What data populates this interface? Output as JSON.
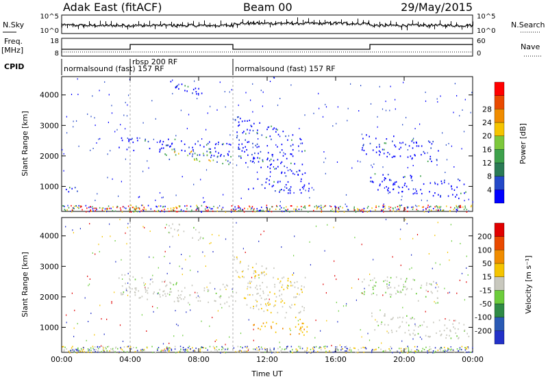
{
  "header": {
    "title": "Adak East (fitACF)",
    "beam": "Beam 00",
    "date": "29/May/2015"
  },
  "noise_panel": {
    "left_label": "N.Sky",
    "right_label": "N.Search",
    "left_ticks": [
      "10^5",
      "10^0"
    ],
    "right_ticks": [
      "10^5",
      "10^0"
    ]
  },
  "freq_panel": {
    "left_label": "Freq.",
    "left_unit": "[MHz]",
    "right_label": "Nave",
    "left_ticks": [
      "18",
      "8"
    ],
    "right_ticks": [
      "60",
      "0"
    ]
  },
  "cpid_panel": {
    "label": "CPID",
    "segments": [
      {
        "start_hour": 0,
        "end_hour": 4,
        "name": "normalsound (fast) 157 RF"
      },
      {
        "start_hour": 4,
        "end_hour": 10,
        "name": "rbsp 200 RF"
      },
      {
        "start_hour": 10,
        "end_hour": 24,
        "name": "normalsound (fast) 157 RF"
      }
    ]
  },
  "chart_data": [
    {
      "type": "heatmap",
      "name": "power",
      "ylabel": "Slant Range [km]",
      "ylim": [
        180,
        4600
      ],
      "yticks": [
        1000,
        2000,
        3000,
        4000
      ],
      "xlim": [
        0,
        24
      ],
      "xticks": [
        0,
        4,
        8,
        12,
        16,
        20,
        24
      ],
      "colorbar": {
        "label": "Power [dB]",
        "ticks": [
          4,
          8,
          12,
          16,
          20,
          24,
          28
        ],
        "colors": [
          "#0000ff",
          "#2449c8",
          "#2a7a55",
          "#3ea14c",
          "#7dc83c",
          "#f5c400",
          "#f08c00",
          "#e94a00",
          "#ff0000"
        ]
      },
      "features": [
        {
          "t0": 3.3,
          "t1": 9.9,
          "r0": 2050,
          "r1": 2600,
          "level": "blue"
        },
        {
          "t0": 6.0,
          "t1": 9.9,
          "r0": 1800,
          "r1": 2200,
          "level": "green-yellow"
        },
        {
          "t0": 10.0,
          "t1": 14.2,
          "r0": 1400,
          "r1": 3100,
          "level": "blue"
        },
        {
          "t0": 10.7,
          "t1": 14.5,
          "r0": 800,
          "r1": 1250,
          "level": "blue"
        },
        {
          "t0": 17.5,
          "t1": 22.0,
          "r0": 1900,
          "r1": 2700,
          "level": "blue"
        },
        {
          "t0": 18.0,
          "t1": 23.8,
          "r0": 700,
          "r1": 1400,
          "level": "blue"
        },
        {
          "t0": 0.0,
          "t1": 1.0,
          "r0": 700,
          "r1": 1050,
          "level": "blue"
        },
        {
          "t0": 6.2,
          "t1": 8.3,
          "r0": 3900,
          "r1": 4400,
          "level": "blue"
        }
      ]
    },
    {
      "type": "heatmap",
      "name": "velocity",
      "ylabel": "Slant Range [km]",
      "xlabel": "Time UT",
      "ylim": [
        180,
        4600
      ],
      "yticks": [
        1000,
        2000,
        3000,
        4000
      ],
      "xlim": [
        0,
        24
      ],
      "xticks": [
        0,
        4,
        8,
        12,
        16,
        20,
        24
      ],
      "xtick_labels": [
        "00:00",
        "04:00",
        "08:00",
        "12:00",
        "16:00",
        "20:00",
        "00:00"
      ],
      "colorbar": {
        "label": "Velocity [m s⁻¹]",
        "ticks": [
          200,
          100,
          50,
          15,
          -15,
          -50,
          -100,
          -200
        ],
        "colors": [
          "#2231c8",
          "#2a5ab4",
          "#2f8a46",
          "#6ccc3c",
          "#c8c8be",
          "#f5c400",
          "#f08c00",
          "#e94a00",
          "#e00000"
        ]
      },
      "features": [
        {
          "t0": 3.3,
          "t1": 9.9,
          "r0": 1800,
          "r1": 2650,
          "level": "grey"
        },
        {
          "t0": 10.0,
          "t1": 14.2,
          "r0": 1400,
          "r1": 3100,
          "level": "grey-orange"
        },
        {
          "t0": 11.0,
          "t1": 14.5,
          "r0": 800,
          "r1": 1250,
          "level": "orange"
        },
        {
          "t0": 17.5,
          "t1": 22.0,
          "r0": 1900,
          "r1": 2700,
          "level": "grey-green"
        },
        {
          "t0": 18.0,
          "t1": 23.8,
          "r0": 700,
          "r1": 1400,
          "level": "grey"
        },
        {
          "t0": 6.2,
          "t1": 8.3,
          "r0": 3900,
          "r1": 4400,
          "level": "grey"
        }
      ]
    }
  ]
}
